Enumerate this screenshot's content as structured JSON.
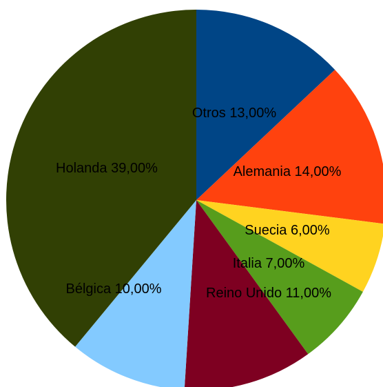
{
  "chart_data": {
    "type": "pie",
    "categories": [
      "Otros",
      "Alemania",
      "Suecia",
      "Italia",
      "Reino Unido",
      "Bélgica",
      "Holanda"
    ],
    "values": [
      13,
      14,
      6,
      7,
      11,
      10,
      39
    ],
    "value_labels": [
      "13,00%",
      "14,00%",
      "6,00%",
      "7,00%",
      "11,00%",
      "10,00%",
      "39,00%"
    ],
    "colors": [
      "#004586",
      "#ff420e",
      "#ffd320",
      "#579d1c",
      "#7e0021",
      "#83caff",
      "#314004"
    ]
  }
}
